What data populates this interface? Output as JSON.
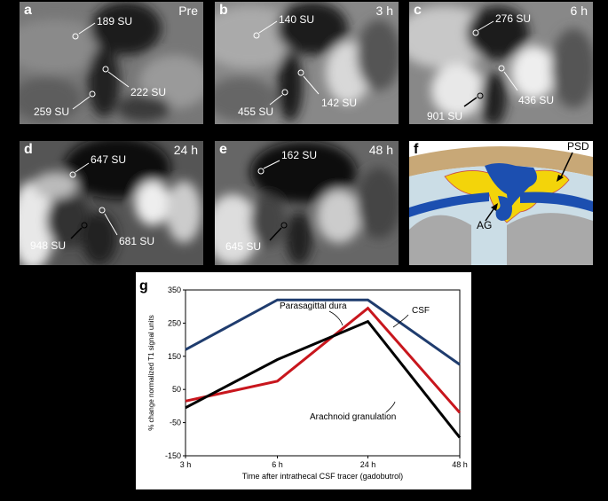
{
  "panels": [
    {
      "letter": "a",
      "time": "Pre",
      "rois": [
        "189 SU",
        "222 SU",
        "259 SU"
      ]
    },
    {
      "letter": "b",
      "time": "3 h",
      "rois": [
        "140 SU",
        "142 SU",
        "455 SU"
      ]
    },
    {
      "letter": "c",
      "time": "6 h",
      "rois": [
        "276 SU",
        "436 SU",
        "901 SU"
      ]
    },
    {
      "letter": "d",
      "time": "24 h",
      "rois": [
        "647 SU",
        "681 SU",
        "948 SU"
      ]
    },
    {
      "letter": "e",
      "time": "48 h",
      "rois": [
        "162 SU",
        "645 SU"
      ]
    },
    {
      "letter": "f",
      "labels": {
        "psd": "PSD",
        "ag": "AG"
      }
    }
  ],
  "chart_data": {
    "panel_letter": "g",
    "type": "line",
    "x": [
      "3 h",
      "6 h",
      "24 h",
      "48 h"
    ],
    "xlabel": "Time after intrathecal CSF tracer (gadobutrol)",
    "ylabel": "% change normalized T1 signal units",
    "ylim": [
      -150,
      350
    ],
    "yticks": [
      "350",
      "250",
      "150",
      "50",
      "-50",
      "-150"
    ],
    "series": [
      {
        "name": "CSF",
        "color": "#1f3c6e",
        "values": [
          170,
          320,
          320,
          125
        ]
      },
      {
        "name": "Parasagittal dura",
        "color": "#c8161d",
        "values": [
          15,
          75,
          295,
          -20
        ]
      },
      {
        "name": "Arachnoid granulation",
        "color": "#000000",
        "values": [
          -5,
          140,
          255,
          -95
        ]
      }
    ]
  }
}
